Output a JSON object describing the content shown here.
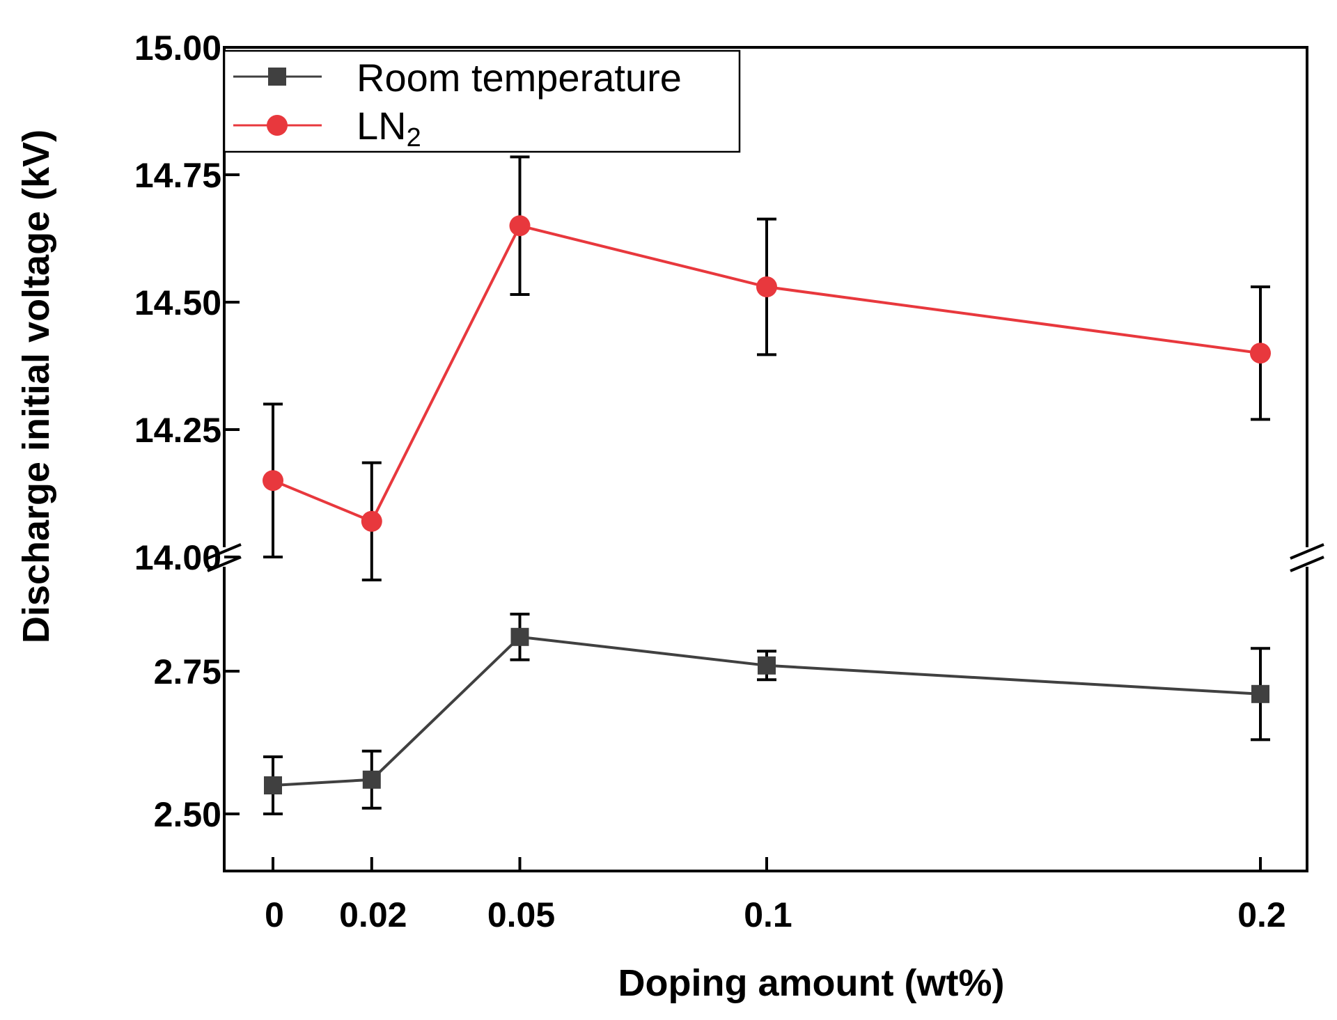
{
  "chart_data": {
    "type": "line",
    "xlabel": "Doping amount (wt%)",
    "ylabel": "Discharge initial voltage (kV)",
    "x_values": [
      0,
      0.02,
      0.05,
      0.1,
      0.2
    ],
    "x_tick_labels": [
      "0",
      "0.02",
      "0.05",
      "0.1",
      "0.2"
    ],
    "xlim": [
      -0.01,
      0.21
    ],
    "y_axis_break": true,
    "y_upper_segment": {
      "range": [
        14.0,
        15.0
      ],
      "ticks": [
        "14.00",
        "14.25",
        "14.50",
        "14.75",
        "15.00"
      ]
    },
    "y_lower_segment": {
      "range": [
        2.4,
        2.95
      ],
      "ticks": [
        "2.50",
        "2.75"
      ]
    },
    "legend_position": "top-left",
    "series": [
      {
        "name": "Room temperature",
        "segment": "lower",
        "marker": "square",
        "color": "#404040",
        "values": [
          2.55,
          2.56,
          2.81,
          2.76,
          2.71
        ],
        "errors": [
          0.05,
          0.05,
          0.04,
          0.025,
          0.08
        ]
      },
      {
        "name": "LN",
        "name_subscript": "2",
        "segment": "upper",
        "marker": "circle",
        "color": "#e8383d",
        "values": [
          14.15,
          14.07,
          14.65,
          14.53,
          14.4
        ],
        "errors": [
          0.15,
          0.115,
          0.135,
          0.133,
          0.13
        ]
      }
    ]
  }
}
